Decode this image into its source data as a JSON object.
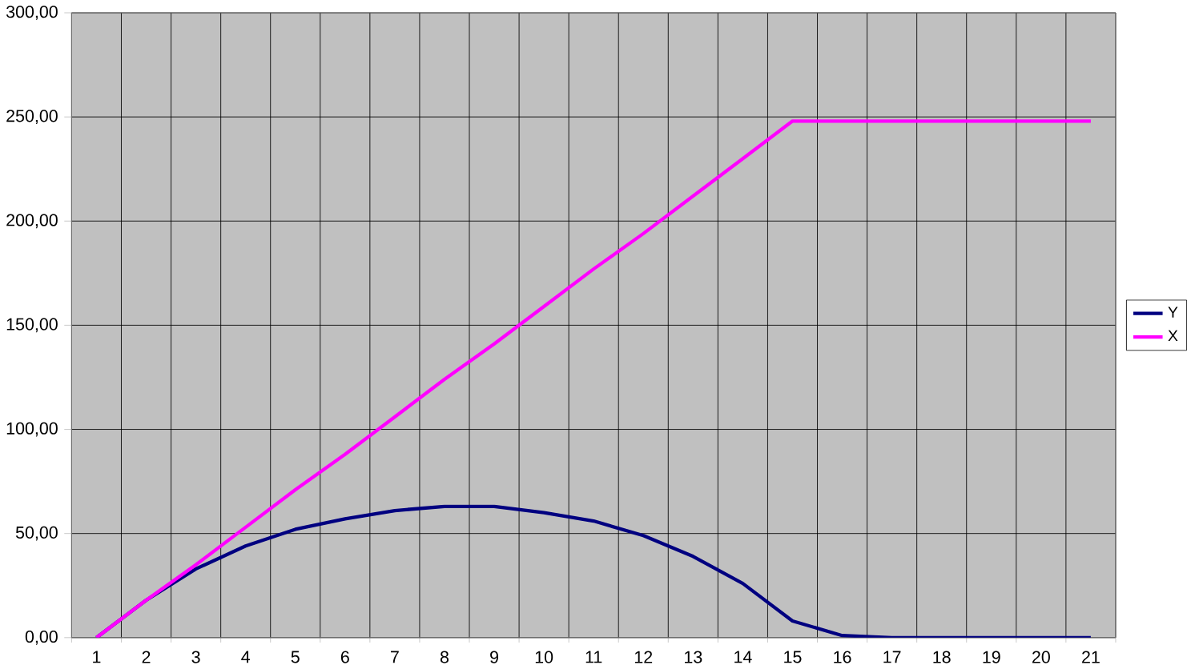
{
  "chart_data": {
    "type": "line",
    "categories": [
      "1",
      "2",
      "3",
      "4",
      "5",
      "6",
      "7",
      "8",
      "9",
      "10",
      "11",
      "12",
      "13",
      "14",
      "15",
      "16",
      "17",
      "18",
      "19",
      "20",
      "21"
    ],
    "series": [
      {
        "name": "Y",
        "color": "#000080",
        "values": [
          0,
          18,
          33,
          44,
          52,
          57,
          61,
          63,
          63,
          60,
          56,
          49,
          39,
          26,
          8,
          1,
          0,
          0,
          0,
          0,
          0
        ]
      },
      {
        "name": "X",
        "color": "#ff00ff",
        "values": [
          0,
          18,
          35,
          53,
          71,
          88,
          106,
          124,
          141,
          159,
          177,
          194,
          212,
          230,
          248,
          248,
          248,
          248,
          248,
          248,
          248
        ]
      }
    ],
    "ylim": [
      0,
      300
    ],
    "yticks": [
      {
        "value": 0,
        "label": "0,00"
      },
      {
        "value": 50,
        "label": "50,00"
      },
      {
        "value": 100,
        "label": "100,00"
      },
      {
        "value": 150,
        "label": "150,00"
      },
      {
        "value": 200,
        "label": "200,00"
      },
      {
        "value": 250,
        "label": "250,00"
      },
      {
        "value": 300,
        "label": "300,00"
      }
    ],
    "grid": true,
    "legend": "right",
    "marker": "none",
    "line_style": "solid"
  }
}
